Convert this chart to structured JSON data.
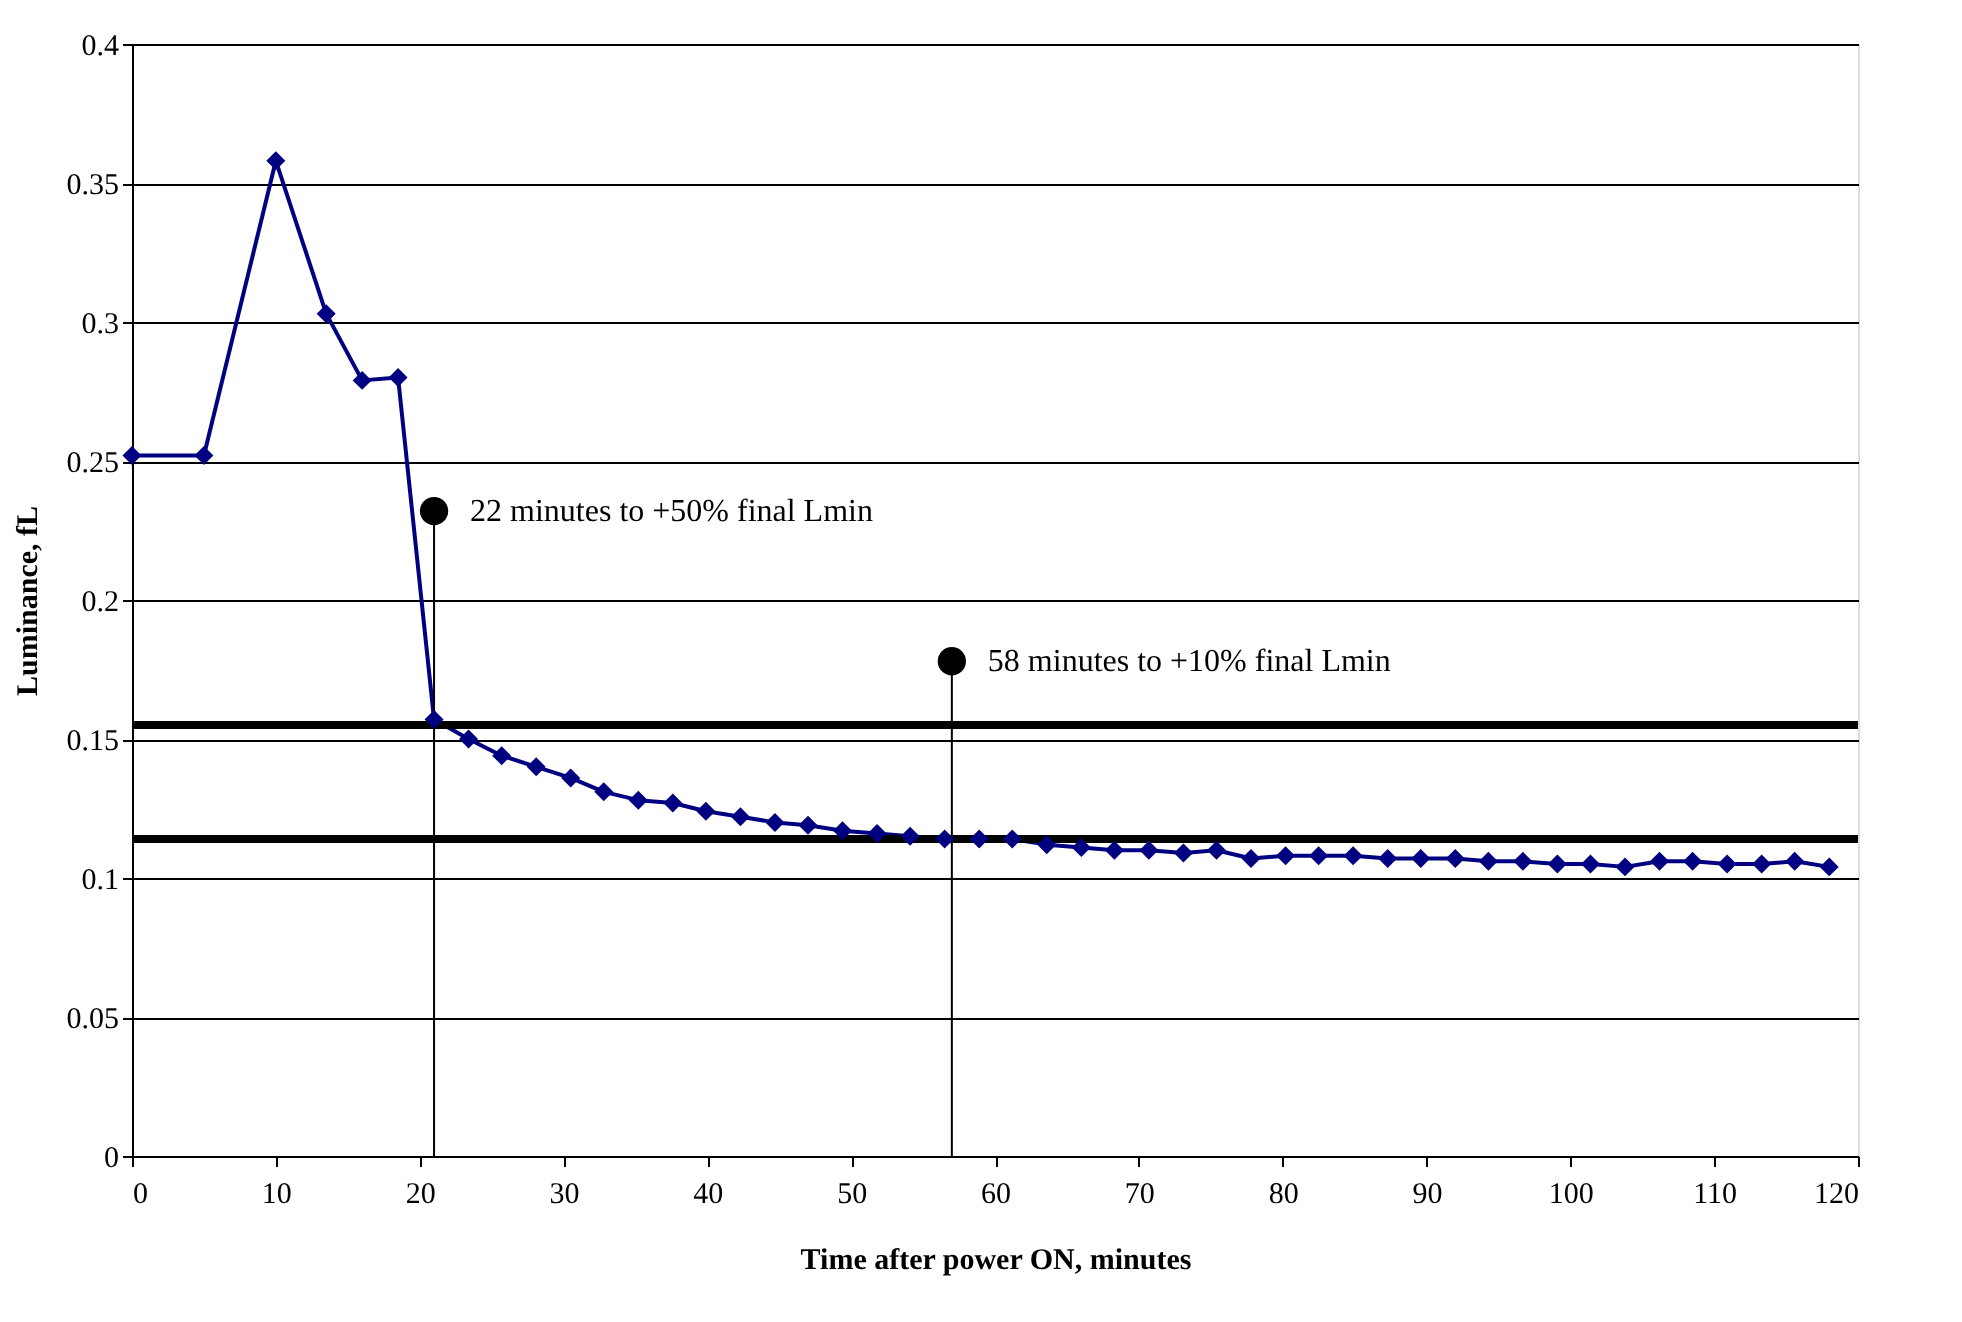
{
  "chart_data": {
    "type": "line",
    "xlabel": "Time after power ON, minutes",
    "ylabel": "Luminance, fL",
    "x": [
      0,
      5,
      10,
      13.5,
      16,
      18.5,
      21,
      23.4,
      25.7,
      28.1,
      30.5,
      32.8,
      35.2,
      37.6,
      39.9,
      42.3,
      44.7,
      47.0,
      49.4,
      51.8,
      54.1,
      56.5,
      58.9,
      61.2,
      63.6,
      66.0,
      68.3,
      70.7,
      73.1,
      75.4,
      77.8,
      80.2,
      82.5,
      84.9,
      87.3,
      89.6,
      92.0,
      94.3,
      96.7,
      99.1,
      101.4,
      103.8,
      106.2,
      108.5,
      110.9,
      113.3,
      115.6,
      118.0
    ],
    "series": [
      {
        "color": "#000080",
        "values": [
          0.252,
          0.252,
          0.358,
          0.303,
          0.279,
          0.28,
          0.157,
          0.15,
          0.144,
          0.14,
          0.136,
          0.131,
          0.128,
          0.127,
          0.124,
          0.122,
          0.12,
          0.119,
          0.117,
          0.116,
          0.115,
          0.114,
          0.114,
          0.114,
          0.112,
          0.111,
          0.11,
          0.11,
          0.109,
          0.11,
          0.107,
          0.108,
          0.108,
          0.108,
          0.107,
          0.107,
          0.107,
          0.106,
          0.106,
          0.105,
          0.105,
          0.104,
          0.106,
          0.106,
          0.105,
          0.105,
          0.106,
          0.104
        ]
      }
    ],
    "xlim": [
      0,
      120
    ],
    "xticks": [
      0,
      10,
      20,
      30,
      40,
      50,
      60,
      70,
      80,
      90,
      100,
      110,
      120
    ],
    "ylim": [
      0,
      0.4
    ],
    "yticks": [
      0,
      0.05,
      0.1,
      0.15,
      0.2,
      0.25,
      0.3,
      0.35,
      0.4
    ],
    "grid": "y",
    "marker": "diamond",
    "line_style": "solid",
    "ref_lines": [
      {
        "axis": "y",
        "value": 0.155,
        "color": "#000000"
      },
      {
        "axis": "y",
        "value": 0.114,
        "color": "#000000"
      }
    ],
    "annotations": [
      {
        "text": "22 minutes to +50% final Lmin",
        "x": 21,
        "y": 0.232
      },
      {
        "text": "58 minutes to +10% final Lmin",
        "x": 57,
        "y": 0.178
      }
    ]
  }
}
